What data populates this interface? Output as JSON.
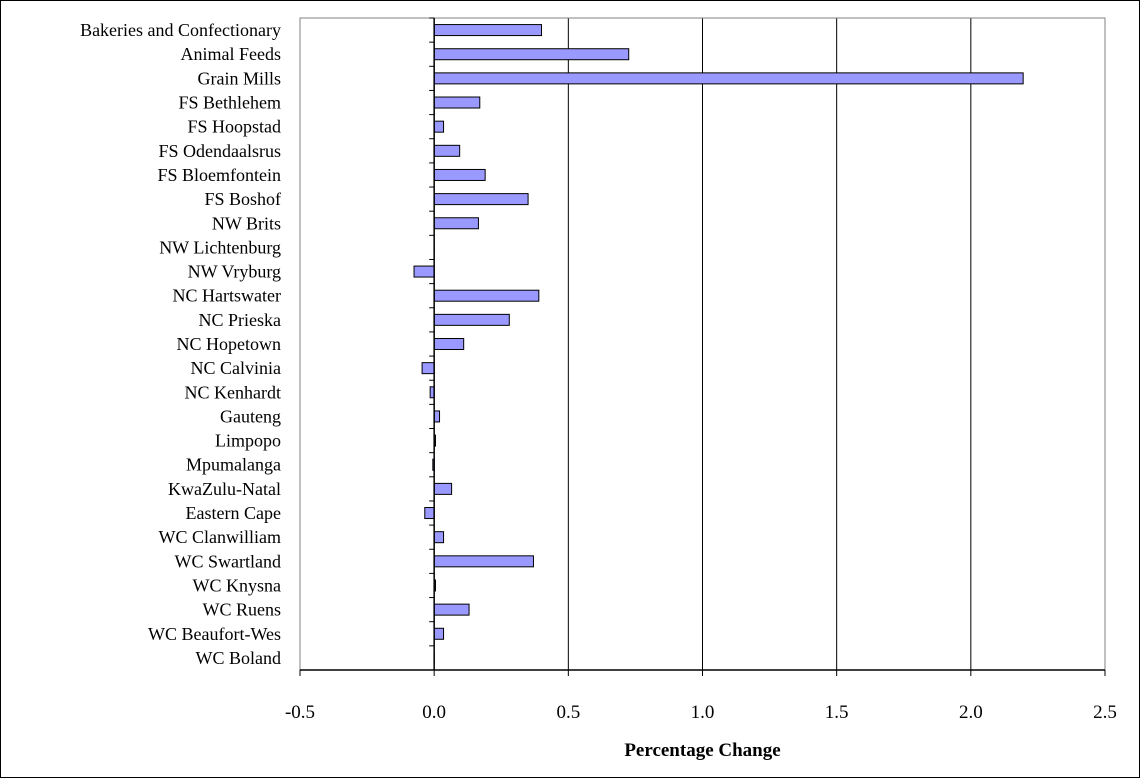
{
  "chart_data": {
    "type": "bar",
    "orientation": "horizontal",
    "categories": [
      "Bakeries and Confectionary",
      "Animal Feeds",
      "Grain Mills",
      "FS Bethlehem",
      "FS Hoopstad",
      "FS Odendaalsrus",
      "FS Bloemfontein",
      "FS Boshof",
      "NW Brits",
      "NW Lichtenburg",
      "NW Vryburg",
      "NC Hartswater",
      "NC Prieska",
      "NC Hopetown",
      "NC Calvinia",
      "NC Kenhardt",
      "Gauteng",
      "Limpopo",
      "Mpumalanga",
      "KwaZulu-Natal",
      "Eastern Cape",
      "WC Clanwilliam",
      "WC Swartland",
      "WC Knysna",
      "WC Ruens",
      "WC Beaufort-Wes",
      "WC Boland"
    ],
    "values": [
      0.4,
      0.725,
      2.195,
      0.17,
      0.035,
      0.095,
      0.19,
      0.35,
      0.165,
      0.0,
      -0.075,
      0.39,
      0.28,
      0.11,
      -0.045,
      -0.015,
      0.02,
      0.005,
      -0.005,
      0.065,
      -0.035,
      0.035,
      0.37,
      0.005,
      0.13,
      0.035,
      0.0
    ],
    "title": "",
    "xlabel": "Percentage Change",
    "ylabel": "",
    "xlim": [
      -0.5,
      2.5
    ],
    "xticks": [
      "-0.5",
      "0.0",
      "0.5",
      "1.0",
      "1.5",
      "2.0",
      "2.5"
    ],
    "grid": "vertical",
    "legend": "none",
    "bar_color": "#9999ff"
  }
}
